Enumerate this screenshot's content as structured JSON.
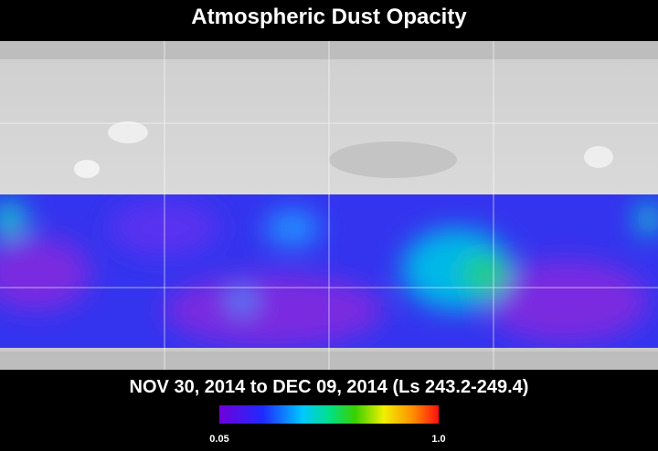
{
  "title": "Atmospheric Dust Opacity",
  "subtitle": "NOV 30, 2014 to DEC 09, 2014 (Ls 243.2-249.4)",
  "colorbar": {
    "clim": [
      0.05,
      1
    ],
    "ticks": [
      0.05,
      {
        "value": 1,
        "label": "1.0"
      }
    ]
  }
}
